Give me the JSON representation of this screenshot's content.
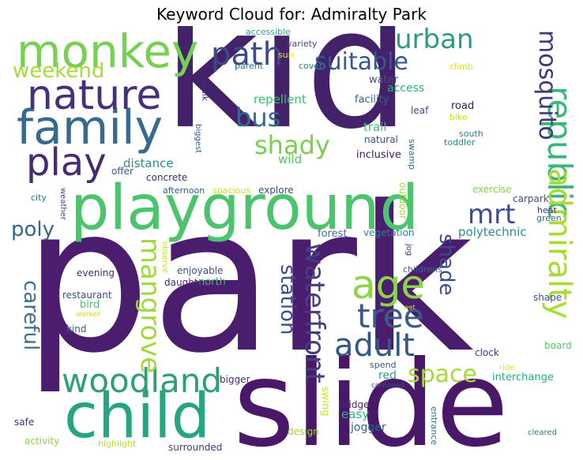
{
  "title": "Keyword Cloud for: Admiralty Park",
  "words": [
    {
      "t": "kid",
      "c": "#44226a"
    },
    {
      "t": "park",
      "c": "#4b1d6e"
    },
    {
      "t": "slide",
      "c": "#4a1868"
    },
    {
      "t": "playground",
      "c": "#4cc46d"
    },
    {
      "t": "child",
      "c": "#26a583"
    },
    {
      "t": "family",
      "c": "#366b8e"
    },
    {
      "t": "monkey",
      "c": "#75d054"
    },
    {
      "t": "nature",
      "c": "#462f7d"
    },
    {
      "t": "play",
      "c": "#462b72"
    },
    {
      "t": "woodland",
      "c": "#2ea078"
    },
    {
      "t": "age",
      "c": "#8ad548"
    },
    {
      "t": "adult",
      "c": "#34578a"
    },
    {
      "t": "tree",
      "c": "#3a5b8b"
    },
    {
      "t": "republic",
      "c": "#38b779"
    },
    {
      "t": "admiralty",
      "c": "#a8db34"
    },
    {
      "t": "mosquito",
      "c": "#3e3a7a"
    },
    {
      "t": "urban",
      "c": "#2e9b87"
    },
    {
      "t": "suitable",
      "c": "#39588d"
    },
    {
      "t": "path",
      "c": "#3b4a88"
    },
    {
      "t": "weekend",
      "c": "#a8db34"
    },
    {
      "t": "bus",
      "c": "#2f6e8e"
    },
    {
      "t": "shady",
      "c": "#7ccf4e"
    },
    {
      "t": "mrt",
      "c": "#3e4e8a"
    },
    {
      "t": "mangrove",
      "c": "#a0da39"
    },
    {
      "t": "waterfront",
      "c": "#433d84"
    },
    {
      "t": "station",
      "c": "#3b4e8b"
    },
    {
      "t": "space",
      "c": "#a5da38"
    },
    {
      "t": "shade",
      "c": "#3c4e8a"
    },
    {
      "t": "careful",
      "c": "#3e6e8c"
    },
    {
      "t": "poly",
      "c": "#38668d"
    },
    {
      "t": "repellent",
      "c": "#3dbb70"
    },
    {
      "t": "access",
      "c": "#2ab07e"
    },
    {
      "t": "water",
      "c": "#424f8b"
    },
    {
      "t": "facility",
      "c": "#37618d"
    },
    {
      "t": "trail",
      "c": "#44b779"
    },
    {
      "t": "wild",
      "c": "#55c467"
    },
    {
      "t": "distance",
      "c": "#2e8d8b"
    },
    {
      "t": "offer",
      "c": "#3c5c8d"
    },
    {
      "t": "concrete",
      "c": "#3b2a6e"
    },
    {
      "t": "afternoon",
      "c": "#2f5e8d"
    },
    {
      "t": "spacious",
      "c": "#cde11d"
    },
    {
      "t": "explore",
      "c": "#3c4a88"
    },
    {
      "t": "exercise",
      "c": "#7ed34d"
    },
    {
      "t": "polytechnic",
      "c": "#2f8b8c"
    },
    {
      "t": "forest",
      "c": "#3d6c8d"
    },
    {
      "t": "vegetation",
      "c": "#2c7f8e"
    },
    {
      "t": "outdoor",
      "c": "#9bd93c"
    },
    {
      "t": "north",
      "c": "#42bf71"
    },
    {
      "t": "enjoyable",
      "c": "#3d4a88"
    },
    {
      "t": "daughter",
      "c": "#4a2677"
    },
    {
      "t": "evening",
      "c": "#462b72"
    },
    {
      "t": "restaurant",
      "c": "#3a4e88"
    },
    {
      "t": "bird",
      "c": "#4bbf6e"
    },
    {
      "t": "kind",
      "c": "#33608d"
    },
    {
      "t": "childrens",
      "c": "#30688e"
    },
    {
      "t": "interchange",
      "c": "#27ad80"
    },
    {
      "t": "red",
      "c": "#2ea38a"
    },
    {
      "t": "spend",
      "c": "#3d4e8a"
    },
    {
      "t": "swing",
      "c": "#c7e31f"
    },
    {
      "t": "bridge",
      "c": "#482777"
    },
    {
      "t": "easy",
      "c": "#2fb47c"
    },
    {
      "t": "jogger",
      "c": "#2e648e"
    },
    {
      "t": "bigger",
      "c": "#472a79"
    },
    {
      "t": "safe",
      "c": "#462f7d"
    },
    {
      "t": "activity",
      "c": "#8ad548"
    },
    {
      "t": "highlight",
      "c": "#c3e021"
    },
    {
      "t": "surrounded",
      "c": "#45357f"
    },
    {
      "t": "design",
      "c": "#9bd93c"
    },
    {
      "t": "entrance",
      "c": "#2d728e"
    },
    {
      "t": "cleared",
      "c": "#2c7b8e"
    },
    {
      "t": "board",
      "c": "#56c667"
    },
    {
      "t": "clock",
      "c": "#46337e"
    },
    {
      "t": "shape",
      "c": "#3a548c"
    },
    {
      "t": "heat",
      "c": "#4b2b74"
    },
    {
      "t": "green",
      "c": "#2a768e"
    },
    {
      "t": "carpark",
      "c": "#3c4d8a"
    },
    {
      "t": "road",
      "c": "#2e2161"
    },
    {
      "t": "leaf",
      "c": "#3f4789"
    },
    {
      "t": "bike",
      "c": "#cbe11e"
    },
    {
      "t": "south",
      "c": "#2f7a8e"
    },
    {
      "t": "toddler",
      "c": "#2c8a8b"
    },
    {
      "t": "natural",
      "c": "#3a4a88"
    },
    {
      "t": "inclusive",
      "c": "#3c1a66"
    },
    {
      "t": "swamp",
      "c": "#2f6e8e"
    },
    {
      "t": "accessible",
      "c": "#27a583"
    },
    {
      "t": "variety",
      "c": "#3e4989"
    },
    {
      "t": "sun",
      "c": "#e7e419"
    },
    {
      "t": "cover",
      "c": "#2c7f8e"
    },
    {
      "t": "parent",
      "c": "#32658e"
    },
    {
      "t": "climb",
      "c": "#d8e219"
    },
    {
      "t": "walk",
      "c": "#462c7b"
    },
    {
      "t": "biggest",
      "c": "#33628d"
    },
    {
      "t": "city",
      "c": "#2c728e"
    },
    {
      "t": "weather",
      "c": "#3e4d8a"
    },
    {
      "t": "observe",
      "c": "#cde11d"
    },
    {
      "t": "worker",
      "c": "#c7e020"
    },
    {
      "t": "jog",
      "c": "#46327e"
    },
    {
      "t": "wet",
      "c": "#cde11d"
    },
    {
      "t": "cordoned",
      "c": "#3e4a89"
    },
    {
      "t": "ride",
      "c": "#e2e418"
    }
  ]
}
